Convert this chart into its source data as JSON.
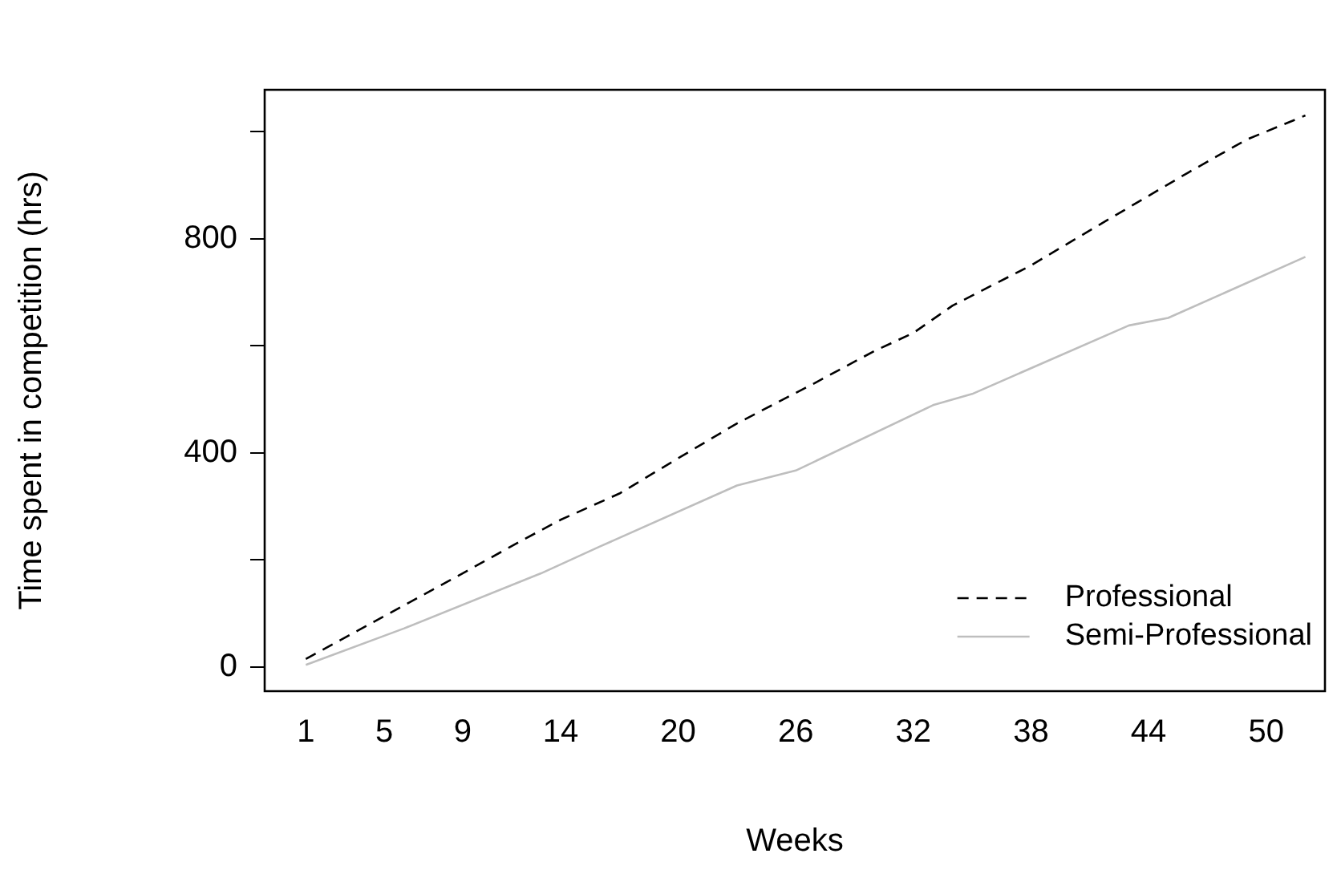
{
  "chart_data": {
    "type": "line",
    "xlabel": "Weeks",
    "ylabel": "Time spent in competition (hrs)",
    "xlim": [
      -1.1,
      53
    ],
    "xticks": [
      1,
      5,
      9,
      14,
      20,
      26,
      32,
      38,
      44,
      50
    ],
    "ylim": [
      -45,
      1078
    ],
    "yticks": [
      0,
      {
        "value": 200,
        "label": null
      },
      400,
      {
        "value": 600,
        "label": null
      },
      800,
      {
        "value": 1000,
        "label": null
      }
    ],
    "grid": false,
    "legend": "bottom right",
    "series": [
      {
        "name": "Professional",
        "color": "#000000",
        "line_style": "dashed",
        "x": [
          1,
          5,
          9,
          12,
          14,
          17,
          20,
          23,
          27,
          30,
          32,
          34,
          38,
          42,
          46,
          49,
          52
        ],
        "values": [
          15,
          95,
          175,
          236,
          275,
          324,
          390,
          455,
          531,
          590,
          624,
          675,
          750,
          837,
          923,
          985,
          1030
        ]
      },
      {
        "name": "Semi-Professional",
        "color": "#bebebe",
        "line_style": "solid",
        "x": [
          1,
          6,
          13,
          16,
          23,
          26,
          33,
          35,
          43,
          45,
          52
        ],
        "values": [
          4,
          72,
          175,
          225,
          339,
          367,
          489,
          510,
          638,
          652,
          766
        ]
      }
    ]
  }
}
